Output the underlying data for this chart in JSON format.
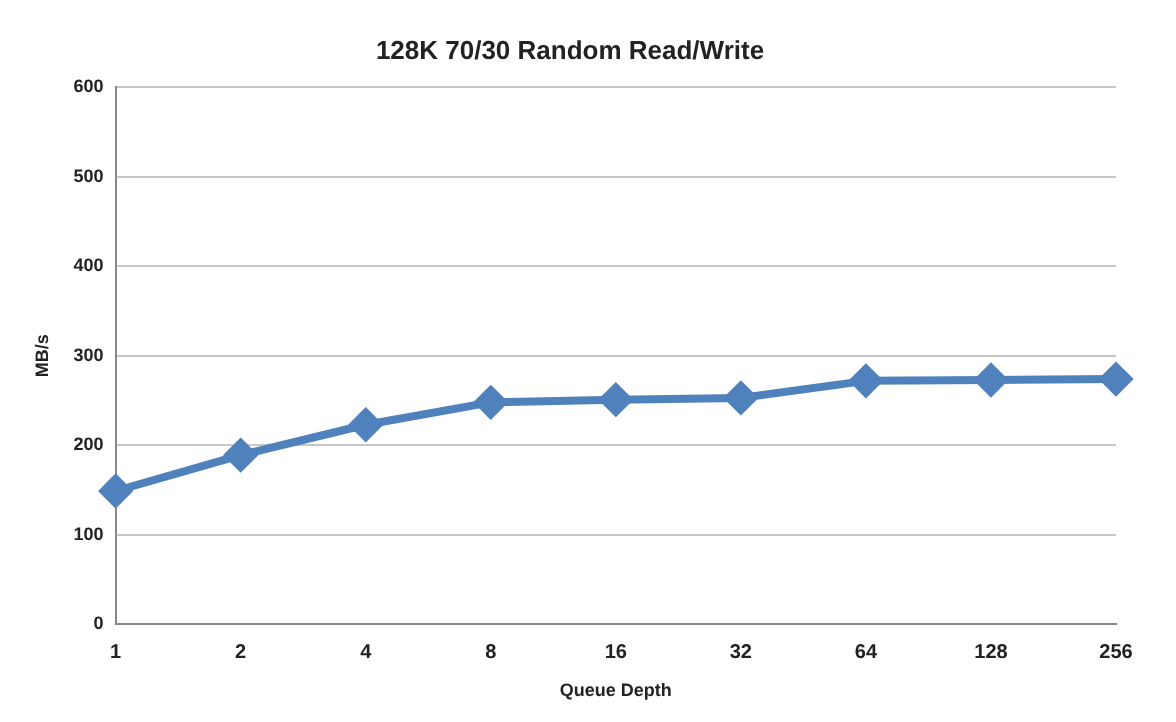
{
  "chart_data": {
    "type": "line",
    "title": "128K 70/30 Random Read/Write",
    "xlabel": "Queue Depth",
    "ylabel": "MB/s",
    "categories": [
      "1",
      "2",
      "4",
      "8",
      "16",
      "32",
      "64",
      "128",
      "256"
    ],
    "series": [
      {
        "color": "#4f81bd",
        "values": [
          149,
          189,
          223,
          248,
          251,
          253,
          272,
          273,
          274
        ]
      }
    ],
    "ylim": [
      0,
      600
    ],
    "yticks": [
      0,
      100,
      200,
      300,
      400,
      500,
      600
    ],
    "grid": "y",
    "legend": false,
    "marker": "diamond",
    "line_style": "solid"
  }
}
